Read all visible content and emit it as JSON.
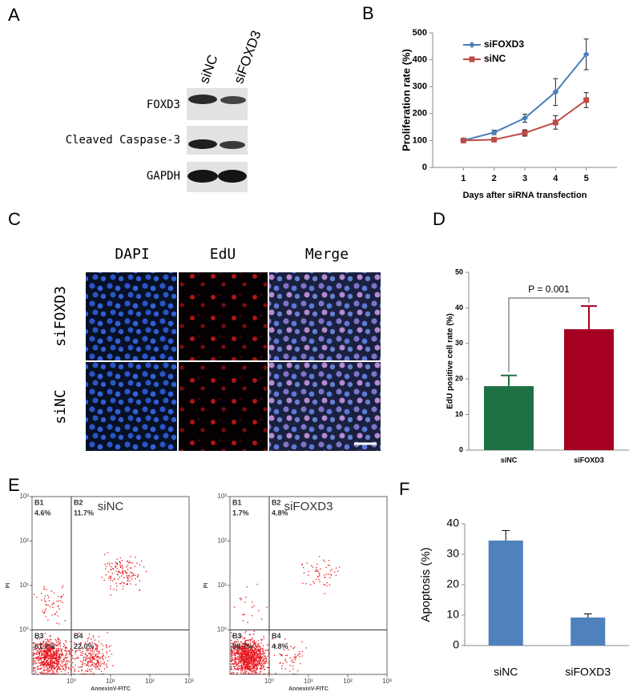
{
  "figure": {
    "panel_labels": [
      "A",
      "B",
      "C",
      "D",
      "E",
      "F"
    ],
    "blot": {
      "lanes": [
        "siNC",
        "siFOXD3"
      ],
      "rows": [
        "FOXD3",
        "Cleaved Caspase-3",
        "GAPDH"
      ]
    },
    "microscopy": {
      "columns": [
        "DAPI",
        "EdU",
        "Merge"
      ],
      "rows": [
        "siFOXD3",
        "siNC"
      ]
    }
  },
  "chart_data": [
    {
      "type": "line",
      "xlabel": "Days after siRNA transfection",
      "ylabel": "Proliferation rate (%)",
      "x": [
        1,
        2,
        3,
        4,
        5
      ],
      "xlim": [
        0,
        6
      ],
      "xticks": [
        1,
        2,
        3,
        4,
        5
      ],
      "ylim": [
        0,
        500
      ],
      "yticks": [
        0,
        100,
        200,
        300,
        400,
        500
      ],
      "legend": "upper left",
      "series": [
        {
          "name": "siFOXD3",
          "color": "#4a7ebb",
          "marker": "diamond",
          "values": [
            100,
            130,
            183,
            280,
            420
          ],
          "errors": [
            3,
            8,
            15,
            50,
            57
          ]
        },
        {
          "name": "siNC",
          "color": "#be4b48",
          "marker": "square",
          "values": [
            100,
            103,
            128,
            167,
            250
          ],
          "errors": [
            3,
            5,
            12,
            25,
            28
          ]
        }
      ]
    },
    {
      "type": "bar",
      "ylabel": "EdU positive cell rate (%)",
      "categories": [
        "siNC",
        "siFOXD3"
      ],
      "values": [
        18,
        34
      ],
      "errors": [
        3,
        6.5
      ],
      "colors": [
        "#1e7145",
        "#a50021"
      ],
      "ylim": [
        0,
        50
      ],
      "yticks": [
        0,
        10,
        20,
        30,
        40,
        50
      ],
      "annotation": "P = 0.001"
    },
    {
      "type": "flow",
      "title": "siNC",
      "xlabel": "AnnexinV-FITC",
      "ylabel": "PI",
      "xlim": [
        0.1,
        1000
      ],
      "ylim": [
        0.1,
        1000
      ],
      "log": true,
      "gate_x": 1,
      "gate_y": 1,
      "color": "#e8141c",
      "xticks": [
        {
          "value": 1,
          "label": "10⁰"
        },
        {
          "value": 10,
          "label": "10¹"
        },
        {
          "value": 100,
          "label": "10²"
        },
        {
          "value": 1000,
          "label": "10³"
        }
      ],
      "yticks": [
        {
          "value": 1,
          "label": "10⁰"
        },
        {
          "value": 10,
          "label": "10¹"
        },
        {
          "value": 100,
          "label": "10²"
        },
        {
          "value": 1000,
          "label": "10³"
        }
      ],
      "quadrants": [
        "B1",
        "B2",
        "B3",
        "B4"
      ],
      "values": [
        4.6,
        11.7,
        61.7,
        22.0
      ],
      "value_labels": [
        "4.6%",
        "11.7%",
        "61.7%",
        "22.0%"
      ]
    },
    {
      "type": "flow",
      "title": "siFOXD3",
      "xlabel": "AnnexinV-FITC",
      "ylabel": "PI",
      "xlim": [
        0.1,
        1000
      ],
      "ylim": [
        0.1,
        1000
      ],
      "log": true,
      "gate_x": 1,
      "gate_y": 1,
      "color": "#e8141c",
      "xticks": [
        {
          "value": 1,
          "label": "10⁰"
        },
        {
          "value": 10,
          "label": "10¹"
        },
        {
          "value": 100,
          "label": "10²"
        },
        {
          "value": 1000,
          "label": "10³"
        }
      ],
      "yticks": [
        {
          "value": 1,
          "label": "10⁰"
        },
        {
          "value": 10,
          "label": "10¹"
        },
        {
          "value": 100,
          "label": "10²"
        },
        {
          "value": 1000,
          "label": "10³"
        }
      ],
      "quadrants": [
        "B1",
        "B2",
        "B3",
        "B4"
      ],
      "values": [
        1.7,
        4.8,
        88.7,
        4.8
      ],
      "value_labels": [
        "1.7%",
        "4.8%",
        "88.7%",
        "4.8%"
      ]
    },
    {
      "type": "bar",
      "ylabel": "Apoptosis (%)",
      "categories": [
        "siNC",
        "siFOXD3"
      ],
      "values": [
        34.5,
        9.2
      ],
      "errors": [
        3.3,
        1.2
      ],
      "color": "#4f81bd",
      "ylim": [
        0,
        40
      ],
      "yticks": [
        0,
        10,
        20,
        30,
        40
      ]
    }
  ]
}
